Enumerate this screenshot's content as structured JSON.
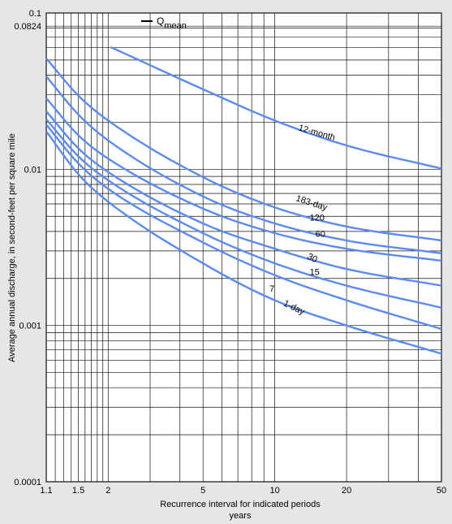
{
  "chart_data": {
    "type": "line",
    "xscale": "log",
    "yscale": "log",
    "xlim": [
      1.1,
      50
    ],
    "ylim": [
      0.0001,
      0.1
    ],
    "x_ticks": [
      {
        "value": 1.1,
        "label": "1.1"
      },
      {
        "value": 1.5,
        "label": "1.5"
      },
      {
        "value": 2,
        "label": "2"
      },
      {
        "value": 5,
        "label": "5"
      },
      {
        "value": 10,
        "label": "10"
      },
      {
        "value": 20,
        "label": "20"
      },
      {
        "value": 50,
        "label": "50"
      }
    ],
    "y_ticks": [
      {
        "value": 0.1,
        "label": "0.1"
      },
      {
        "value": 0.0824,
        "label": "0.0824"
      },
      {
        "value": 0.01,
        "label": "0.01"
      },
      {
        "value": 0.001,
        "label": "0.001"
      },
      {
        "value": 0.0001,
        "label": "0.0001"
      }
    ],
    "x_grid": [
      1.1,
      1.2,
      1.3,
      1.4,
      1.5,
      1.6,
      1.7,
      1.8,
      1.9,
      2,
      3,
      4,
      5,
      6,
      7,
      8,
      9,
      10,
      20,
      30,
      40,
      50
    ],
    "y_grid": [
      0.0001,
      0.0002,
      0.0003,
      0.0004,
      0.0005,
      0.0006,
      0.0007,
      0.0008,
      0.0009,
      0.001,
      0.002,
      0.003,
      0.004,
      0.005,
      0.006,
      0.007,
      0.008,
      0.009,
      0.01,
      0.02,
      0.03,
      0.04,
      0.05,
      0.06,
      0.07,
      0.08,
      0.0824,
      0.1
    ],
    "xlabel_line1": "Recurrence interval for indicated periods",
    "xlabel_line2": "years",
    "ylabel": "Average annual discharge, in second-feet per square mile",
    "qmean_legend": {
      "symbol": "Q",
      "subscript": "mean",
      "value": 0.0824
    },
    "series": [
      {
        "name": "12-month",
        "points": [
          [
            2.05,
            0.0605
          ],
          [
            5,
            0.0325
          ],
          [
            10,
            0.0205
          ],
          [
            20,
            0.0142
          ],
          [
            50,
            0.0101
          ]
        ]
      },
      {
        "name": "183-day",
        "points": [
          [
            1.1,
            0.0512
          ],
          [
            1.5,
            0.0296
          ],
          [
            2,
            0.0205
          ],
          [
            5,
            0.0089
          ],
          [
            10,
            0.0057
          ],
          [
            20,
            0.0043
          ],
          [
            50,
            0.0035
          ]
        ]
      },
      {
        "name": "120",
        "points": [
          [
            1.1,
            0.0393
          ],
          [
            1.5,
            0.0224
          ],
          [
            2,
            0.0153
          ],
          [
            5,
            0.0067
          ],
          [
            10,
            0.0045
          ],
          [
            20,
            0.0035
          ],
          [
            50,
            0.0029
          ]
        ]
      },
      {
        "name": "60",
        "points": [
          [
            1.1,
            0.0285
          ],
          [
            1.5,
            0.0165
          ],
          [
            2,
            0.0117
          ],
          [
            5,
            0.0056
          ],
          [
            10,
            0.0039
          ],
          [
            20,
            0.0031
          ],
          [
            50,
            0.0026
          ]
        ]
      },
      {
        "name": "30",
        "points": [
          [
            1.1,
            0.0235
          ],
          [
            1.5,
            0.0136
          ],
          [
            2,
            0.0096
          ],
          [
            5,
            0.0045
          ],
          [
            10,
            0.0031
          ],
          [
            20,
            0.0023
          ],
          [
            50,
            0.0018
          ]
        ]
      },
      {
        "name": "15",
        "points": [
          [
            1.1,
            0.0209
          ],
          [
            1.5,
            0.0121
          ],
          [
            2,
            0.0085
          ],
          [
            5,
            0.0039
          ],
          [
            10,
            0.0025
          ],
          [
            20,
            0.0018
          ],
          [
            50,
            0.0013
          ]
        ]
      },
      {
        "name": "7",
        "points": [
          [
            1.1,
            0.0193
          ],
          [
            1.5,
            0.0109
          ],
          [
            2,
            0.0075
          ],
          [
            5,
            0.0034
          ],
          [
            10,
            0.0021
          ],
          [
            20,
            0.00145
          ],
          [
            50,
            0.00095
          ]
        ]
      },
      {
        "name": "1-day",
        "points": [
          [
            1.1,
            0.0175
          ],
          [
            1.5,
            0.0093
          ],
          [
            2,
            0.0062
          ],
          [
            5,
            0.0025
          ],
          [
            10,
            0.00145
          ],
          [
            20,
            0.001
          ],
          [
            50,
            0.00066
          ]
        ]
      }
    ],
    "curve_labels": [
      {
        "text": "12-month",
        "series": "12-month",
        "x": 12.5,
        "y": 0.0178,
        "angle": 16
      },
      {
        "text": "183-day",
        "series": "183-day",
        "x": 12.2,
        "y": 0.0063,
        "angle": 18
      },
      {
        "text": "120",
        "series": "120",
        "x": 14.0,
        "y": 0.0047,
        "angle": 0
      },
      {
        "text": "60",
        "series": "60",
        "x": 14.8,
        "y": 0.0037,
        "angle": 0
      },
      {
        "text": "30",
        "series": "30",
        "x": 13.6,
        "y": 0.0027,
        "angle": 28
      },
      {
        "text": "15",
        "series": "15",
        "x": 14.0,
        "y": 0.0021,
        "angle": 0
      },
      {
        "text": "7",
        "series": "7",
        "x": 9.5,
        "y": 0.00165,
        "angle": 0
      },
      {
        "text": "1-day",
        "series": "1-day",
        "x": 10.8,
        "y": 0.00135,
        "angle": 26
      }
    ],
    "colors": {
      "series": "#5b8bf0",
      "grid": "#111111",
      "background": "#e6e6e6",
      "text": "#000000"
    }
  }
}
